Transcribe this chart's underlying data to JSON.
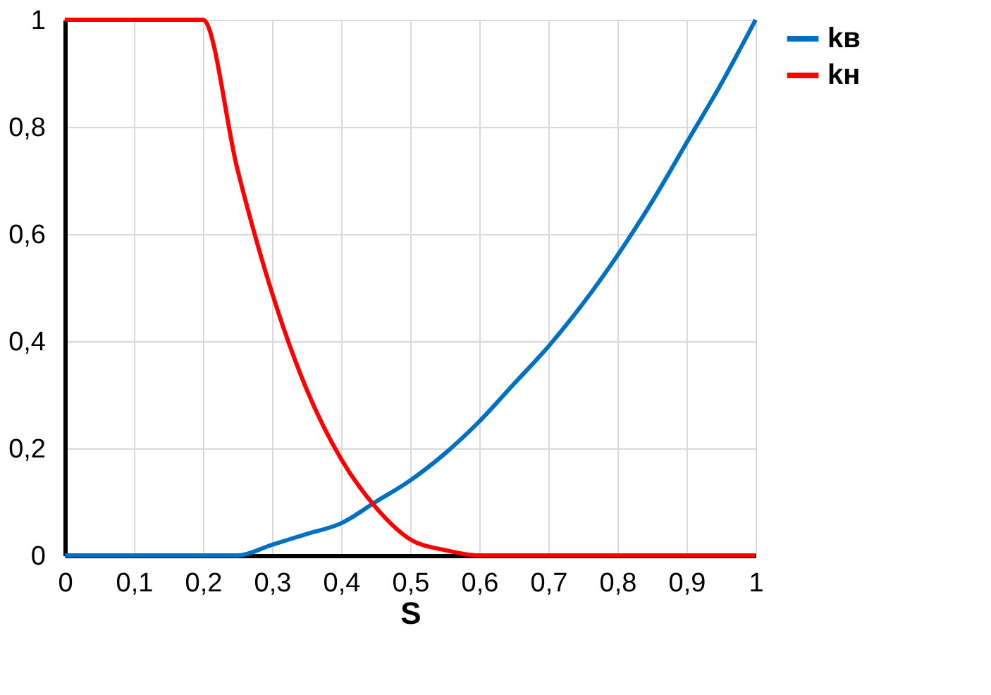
{
  "chart_data": {
    "type": "line",
    "xlabel": "S",
    "x": [
      0,
      0.05,
      0.1,
      0.15,
      0.2,
      0.25,
      0.3,
      0.35,
      0.4,
      0.45,
      0.5,
      0.55,
      0.6,
      0.65,
      0.7,
      0.75,
      0.8,
      0.85,
      0.9,
      0.95,
      1
    ],
    "series": [
      {
        "name": "kв",
        "color": "#0070c0",
        "values": [
          0,
          0,
          0,
          0,
          0,
          0.0,
          0.02,
          0.04,
          0.06,
          0.1,
          0.14,
          0.19,
          0.25,
          0.32,
          0.39,
          0.47,
          0.56,
          0.66,
          0.77,
          0.88,
          1
        ]
      },
      {
        "name": "kн",
        "color": "#ff0000",
        "values": [
          1,
          1,
          1,
          1,
          1,
          0.72,
          0.49,
          0.31,
          0.18,
          0.09,
          0.03,
          0.01,
          0,
          0,
          0,
          0,
          0,
          0,
          0,
          0,
          0
        ]
      }
    ],
    "xlim": [
      0,
      1
    ],
    "xticks": [
      0,
      {
        "value": 0.1,
        "label": "0,1"
      },
      {
        "value": 0.2,
        "label": "0,2"
      },
      {
        "value": 0.3,
        "label": "0,3"
      },
      {
        "value": 0.4,
        "label": "0,4"
      },
      {
        "value": 0.5,
        "label": "0,5"
      },
      {
        "value": 0.6,
        "label": "0,6"
      },
      {
        "value": 0.7,
        "label": "0,7"
      },
      {
        "value": 0.8,
        "label": "0,8"
      },
      {
        "value": 0.9,
        "label": "0,9"
      },
      1
    ],
    "ylim": [
      0,
      1
    ],
    "yticks": [
      0,
      {
        "value": 0.2,
        "label": "0,2"
      },
      {
        "value": 0.4,
        "label": "0,4"
      },
      {
        "value": 0.6,
        "label": "0,6"
      },
      {
        "value": 0.8,
        "label": "0,8"
      },
      1
    ],
    "grid": true,
    "legend": "right",
    "marker": "none",
    "line_style": "solid"
  }
}
